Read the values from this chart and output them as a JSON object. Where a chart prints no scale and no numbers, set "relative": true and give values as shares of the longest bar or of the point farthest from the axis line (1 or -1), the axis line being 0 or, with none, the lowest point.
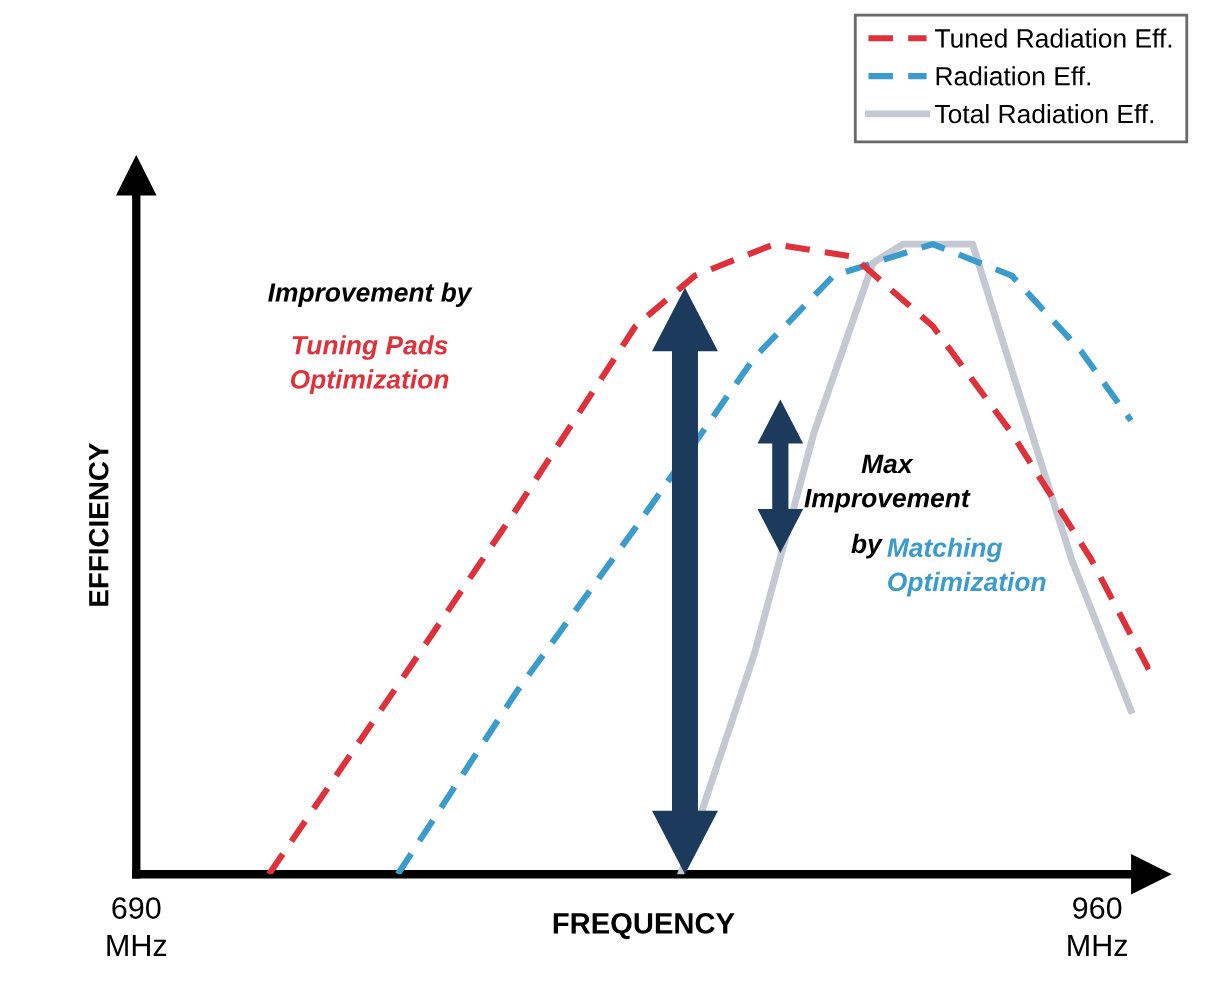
{
  "chart_data": {
    "type": "line",
    "relative": true,
    "xlabel": "FREQUENCY",
    "ylabel": "EFFICIENCY",
    "xlim": [
      690,
      975
    ],
    "xticks": [
      {
        "value": 690,
        "label": "690\nMHz"
      },
      {
        "value": 960,
        "label": "960\nMHz"
      }
    ],
    "series": [
      {
        "name": "Tuned Radiation Eff.",
        "color": "#e0303a",
        "line_style": "dashed",
        "x": [
          727.3,
          763.5,
          796.9,
          830.3,
          847,
          869.3,
          891.5,
          913.8,
          936,
          958.3,
          975
        ],
        "values": [
          0,
          0.3,
          0.58,
          0.87,
          0.95,
          1.0,
          0.98,
          0.87,
          0.7,
          0.5,
          0.32
        ]
      },
      {
        "name": "Radiation Eff.",
        "color": "#3a9ccc",
        "line_style": "dashed",
        "x": [
          763.5,
          796.9,
          830.3,
          863.7,
          886,
          913.8,
          936,
          955.5,
          969.5
        ],
        "values": [
          0,
          0.29,
          0.55,
          0.82,
          0.95,
          1.0,
          0.95,
          0.83,
          0.72
        ]
      },
      {
        "name": "Total Radiation Eff.",
        "color": "#c4c8d2",
        "line_style": "solid",
        "x": [
          843,
          863.7,
          880.4,
          897,
          905.4,
          925,
          936,
          952.8,
          969.5
        ],
        "values": [
          0,
          0.35,
          0.7,
          0.97,
          1.0,
          1.0,
          0.8,
          0.5,
          0.26
        ]
      }
    ],
    "annotations": [
      "Improvement by",
      "Tuning Pads\nOptimization",
      "Max\nImprovement",
      "by",
      "Matching\nOptimization"
    ],
    "legend": "top right",
    "grid": false,
    "marker": "none"
  }
}
